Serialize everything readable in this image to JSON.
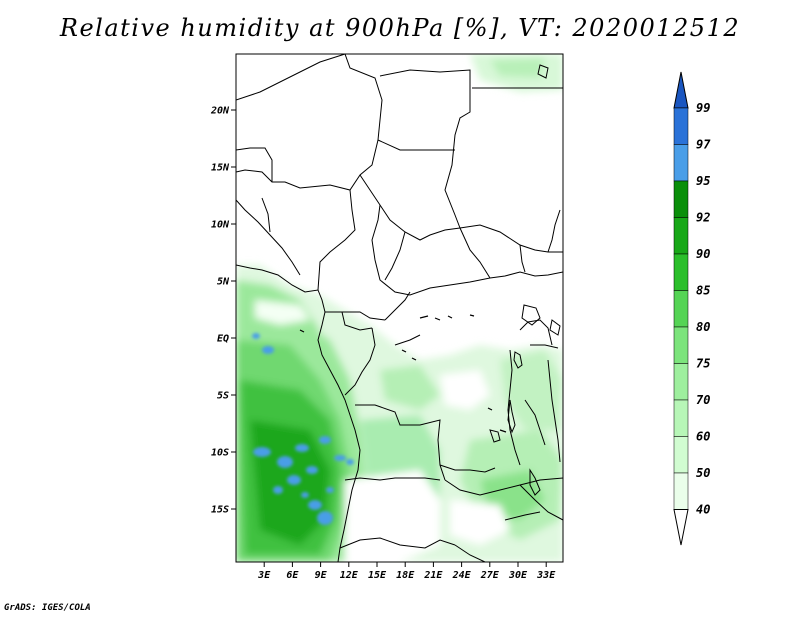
{
  "title": "Relative humidity at 900hPa [%], VT: 2020012512",
  "credit": "GrADS: IGES/COLA",
  "map": {
    "lon_ticks": [
      "3E",
      "6E",
      "9E",
      "12E",
      "15E",
      "18E",
      "21E",
      "24E",
      "27E",
      "30E",
      "33E"
    ],
    "lat_ticks": [
      "20N",
      "15N",
      "10N",
      "5N",
      "EQ",
      "5S",
      "10S",
      "15S"
    ]
  },
  "colorbar": {
    "levels": [
      "40",
      "50",
      "60",
      "70",
      "75",
      "80",
      "85",
      "90",
      "92",
      "95",
      "97",
      "99"
    ],
    "colors": [
      "#ffffff",
      "#eafeea",
      "#d1fcd1",
      "#b7f6b7",
      "#9eef9e",
      "#7ce47c",
      "#55d455",
      "#2bbf2b",
      "#18a818",
      "#0a8f0a",
      "#4a9ee8",
      "#2a72d8",
      "#1a56c0"
    ]
  }
}
